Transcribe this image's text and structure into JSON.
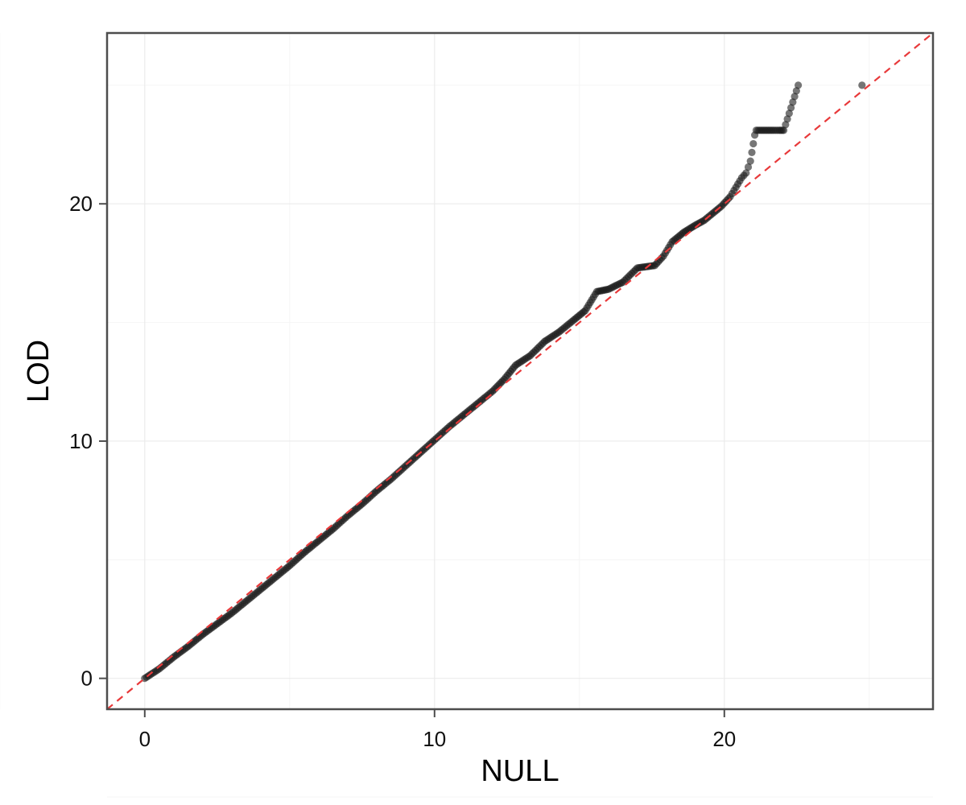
{
  "chart_data": {
    "type": "scatter",
    "title": "",
    "xlabel": "NULL",
    "ylabel": "LOD",
    "xlim": [
      -1.3,
      27.2
    ],
    "ylim": [
      -1.3,
      27.2
    ],
    "x_ticks": [
      0,
      10,
      20
    ],
    "y_ticks": [
      0,
      10,
      20
    ],
    "x_tick_labels": [
      "0",
      "10",
      "20"
    ],
    "y_tick_labels": [
      "0",
      "10",
      "20"
    ],
    "grid": true,
    "reference_line": {
      "type": "identity",
      "slope": 1,
      "intercept": 0,
      "style": "dashed",
      "color": "#e8393a"
    },
    "point_color": "#1a1a1a",
    "series": [
      {
        "points": [
          [
            0,
            0
          ],
          [
            0.5,
            0.4
          ],
          [
            1,
            0.9
          ],
          [
            1.5,
            1.35
          ],
          [
            2,
            1.85
          ],
          [
            2.5,
            2.3
          ],
          [
            3,
            2.75
          ],
          [
            3.5,
            3.25
          ],
          [
            4,
            3.75
          ],
          [
            4.5,
            4.25
          ],
          [
            5,
            4.75
          ],
          [
            5.5,
            5.3
          ],
          [
            6,
            5.8
          ],
          [
            6.5,
            6.3
          ],
          [
            7,
            6.85
          ],
          [
            7.5,
            7.35
          ],
          [
            8,
            7.9
          ],
          [
            8.5,
            8.4
          ],
          [
            9,
            8.95
          ],
          [
            9.5,
            9.5
          ],
          [
            10,
            10.05
          ],
          [
            10.5,
            10.6
          ],
          [
            11,
            11.1
          ],
          [
            11.5,
            11.6
          ],
          [
            12,
            12.1
          ],
          [
            12.4,
            12.6
          ],
          [
            12.8,
            13.2
          ],
          [
            13.3,
            13.6
          ],
          [
            13.8,
            14.2
          ],
          [
            14.3,
            14.6
          ],
          [
            14.8,
            15.1
          ],
          [
            15.2,
            15.5
          ],
          [
            15.6,
            16.3
          ],
          [
            16,
            16.4
          ],
          [
            16.5,
            16.7
          ],
          [
            17,
            17.3
          ],
          [
            17.6,
            17.4
          ],
          [
            17.9,
            17.8
          ],
          [
            18.2,
            18.4
          ],
          [
            18.6,
            18.8
          ],
          [
            19,
            19.1
          ],
          [
            19.3,
            19.3
          ],
          [
            19.6,
            19.6
          ],
          [
            19.9,
            19.9
          ],
          [
            20.2,
            20.3
          ],
          [
            20.4,
            20.7
          ],
          [
            20.6,
            21.1
          ],
          [
            20.75,
            21.3
          ],
          [
            20.9,
            21.8
          ],
          [
            21.05,
            22.9
          ],
          [
            21.1,
            23.1
          ],
          [
            21.7,
            23.1
          ],
          [
            21.9,
            23.1
          ],
          [
            22.05,
            23.1
          ],
          [
            22.55,
            25
          ],
          [
            24.75,
            25
          ]
        ]
      }
    ]
  }
}
